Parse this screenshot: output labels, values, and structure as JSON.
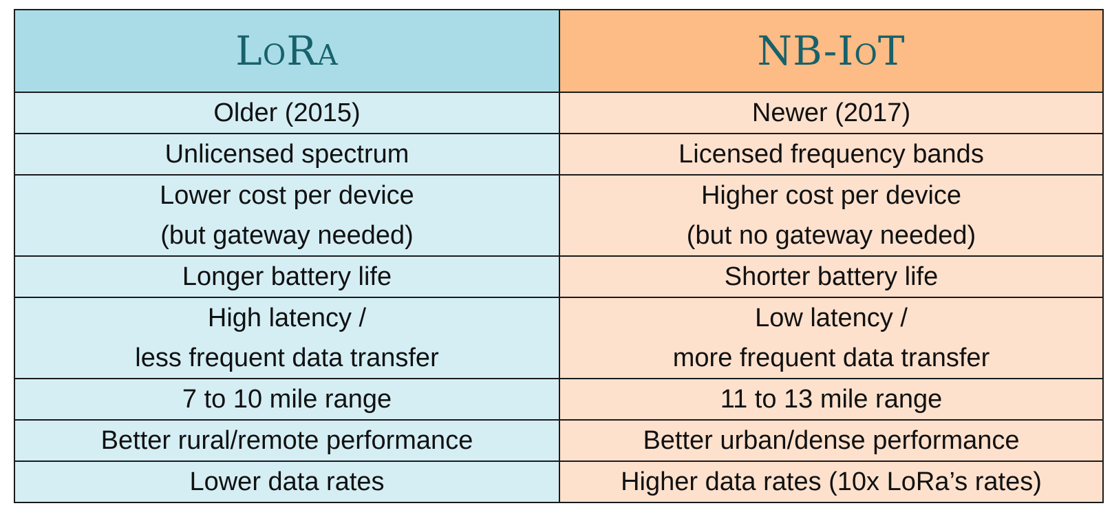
{
  "table": {
    "headers": [
      "LoRa",
      "NB-IoT"
    ],
    "rows": [
      {
        "lora": [
          "Older (2015)"
        ],
        "nbiot": [
          "Newer (2017)"
        ]
      },
      {
        "lora": [
          "Unlicensed spectrum"
        ],
        "nbiot": [
          "Licensed frequency bands"
        ]
      },
      {
        "lora": [
          "Lower cost per device",
          "(but gateway needed)"
        ],
        "nbiot": [
          "Higher cost per device",
          "(but no gateway needed)"
        ]
      },
      {
        "lora": [
          "Longer battery life"
        ],
        "nbiot": [
          "Shorter battery life"
        ]
      },
      {
        "lora": [
          "High latency /",
          "less frequent data transfer"
        ],
        "nbiot": [
          "Low latency /",
          "more frequent data transfer"
        ]
      },
      {
        "lora": [
          "7 to 10 mile range"
        ],
        "nbiot": [
          "11 to 13 mile range"
        ]
      },
      {
        "lora": [
          "Better rural/remote performance"
        ],
        "nbiot": [
          "Better urban/dense performance"
        ]
      },
      {
        "lora": [
          "Lower data rates"
        ],
        "nbiot": [
          "Higher data rates (10x LoRa’s rates)"
        ]
      }
    ]
  }
}
